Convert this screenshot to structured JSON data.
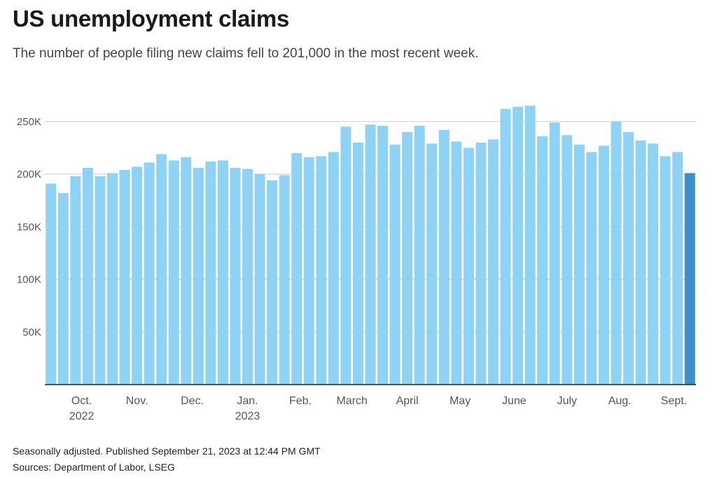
{
  "title": "US unemployment claims",
  "subtitle": "The number of people filing new claims fell to 201,000 in the most recent week.",
  "notes": {
    "adjusted": "Seasonally adjusted. Published September 21, 2023 at 12:44 PM GMT",
    "sources": "Sources: Department of Labor, LSEG"
  },
  "colors": {
    "bar": "#8ed2f5",
    "latest_bar": "#3f8fc8",
    "grid": "#cccccc",
    "axis": "#222222",
    "text": "#555555"
  },
  "chart_data": {
    "type": "bar",
    "title": "US unemployment claims",
    "xlabel": "",
    "ylabel": "",
    "ylim": [
      0,
      275000
    ],
    "yticks": [
      {
        "value": 50000,
        "label": "50K"
      },
      {
        "value": 100000,
        "label": "100K"
      },
      {
        "value": 150000,
        "label": "150K"
      },
      {
        "value": 200000,
        "label": "200K"
      },
      {
        "value": 250000,
        "label": "250K"
      }
    ],
    "xticks": [
      {
        "bar_index": 2.5,
        "label": "Oct.",
        "sublabel": "2022"
      },
      {
        "bar_index": 7,
        "label": "Nov."
      },
      {
        "bar_index": 11.5,
        "label": "Dec."
      },
      {
        "bar_index": 16,
        "label": "Jan.",
        "sublabel": "2023"
      },
      {
        "bar_index": 20.3,
        "label": "Feb."
      },
      {
        "bar_index": 24.5,
        "label": "March"
      },
      {
        "bar_index": 29,
        "label": "April"
      },
      {
        "bar_index": 33.3,
        "label": "May"
      },
      {
        "bar_index": 37.7,
        "label": "June"
      },
      {
        "bar_index": 42,
        "label": "July"
      },
      {
        "bar_index": 46.3,
        "label": "Aug."
      },
      {
        "bar_index": 50.7,
        "label": "Sept."
      }
    ],
    "grid": true,
    "highlight_last": true,
    "values": [
      191000,
      182000,
      198000,
      206000,
      198000,
      201000,
      204000,
      207000,
      211000,
      219000,
      213000,
      216000,
      206000,
      212000,
      213000,
      206000,
      205000,
      200000,
      194000,
      199000,
      220000,
      216000,
      217000,
      221000,
      245000,
      230000,
      247000,
      246000,
      228000,
      240000,
      246000,
      229000,
      242000,
      231000,
      225000,
      230000,
      233000,
      262000,
      264000,
      265000,
      236000,
      249000,
      237000,
      228000,
      221000,
      227000,
      250000,
      240000,
      232000,
      229000,
      217000,
      221000,
      201000
    ]
  }
}
